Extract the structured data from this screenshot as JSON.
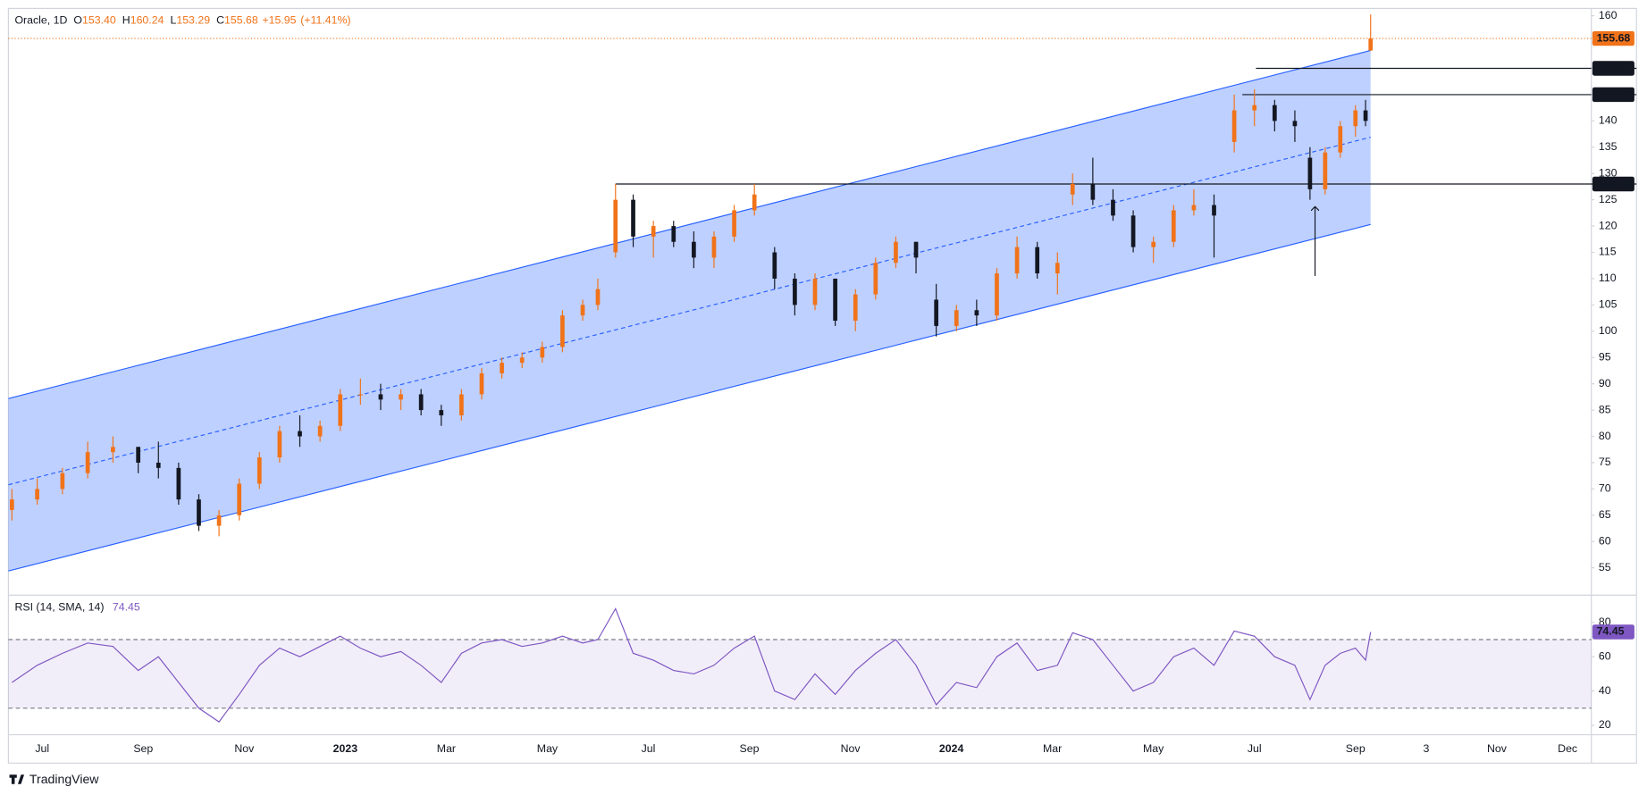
{
  "chart_data": [
    {
      "type": "candlestick",
      "title": "Oracle, 1D",
      "legend_fields": [
        {
          "key": "O",
          "value": 153.4,
          "label": "153.40"
        },
        {
          "key": "H",
          "value": 160.24
        },
        {
          "key": "L",
          "value": 153.29
        },
        {
          "key": "C",
          "value": 155.68
        },
        {
          "value": 15.95,
          "label": "+15.95"
        },
        {
          "value": 11.41,
          "label": "(+11.41%)"
        }
      ],
      "up_color": "#f0731a",
      "down_color": "#131722",
      "x": [
        0.4,
        0.9,
        1.4,
        1.9,
        2.4,
        2.9,
        3.3,
        3.7,
        4.1,
        4.5,
        4.9,
        5.3,
        5.7,
        6.1,
        6.5,
        6.9,
        7.3,
        7.7,
        8.1,
        8.5,
        8.9,
        9.3,
        9.7,
        10.1,
        10.5,
        10.9,
        11.3,
        11.7,
        12.0,
        12.35,
        12.7,
        13.1,
        13.5,
        13.9,
        14.3,
        14.7,
        15.1,
        15.5,
        15.9,
        16.3,
        16.7,
        17.1,
        17.5,
        17.9,
        18.3,
        18.7,
        19.1,
        19.5,
        19.9,
        20.3,
        20.7,
        21.1,
        21.4,
        21.8,
        22.2,
        22.6,
        23.0,
        23.4,
        23.8,
        24.2,
        24.6,
        25.0,
        25.4,
        25.8,
        26.1,
        26.4,
        26.7,
        27.0,
        27.2,
        27.3
      ],
      "open": [
        66,
        68,
        70,
        73,
        77,
        78,
        75,
        74,
        68,
        63,
        65,
        71,
        76,
        81,
        80,
        82,
        88,
        88,
        87,
        88,
        85,
        84,
        88,
        92,
        94,
        95,
        97,
        103,
        105,
        115,
        125,
        118,
        120,
        117,
        114,
        118,
        123,
        115,
        110,
        105,
        110,
        102,
        107,
        113,
        117,
        106,
        101,
        104,
        103,
        111,
        116,
        111,
        126,
        128,
        125,
        122,
        116,
        117,
        123,
        124,
        136,
        142,
        143,
        140,
        133,
        127,
        134,
        139,
        142,
        153.4
      ],
      "high": [
        70,
        72,
        74,
        79,
        80,
        78,
        79,
        75,
        69,
        66,
        72,
        77,
        82,
        84,
        83,
        89,
        91,
        90,
        89,
        89,
        86,
        89,
        93,
        95,
        96,
        98,
        104,
        106,
        110,
        128,
        126,
        121,
        121,
        119,
        119,
        124,
        128,
        116,
        111,
        111,
        110,
        108,
        114,
        118,
        117,
        109,
        105,
        106,
        112,
        118,
        117,
        115,
        130,
        133,
        127,
        123,
        118,
        124,
        127,
        126,
        145,
        146,
        144,
        142,
        135,
        135,
        140,
        143,
        144,
        160.24
      ],
      "low": [
        64,
        67,
        69,
        72,
        75,
        73,
        72,
        67,
        62,
        61,
        64,
        70,
        75,
        78,
        79,
        81,
        86,
        85,
        85,
        84,
        82,
        83,
        87,
        91,
        93,
        94,
        96,
        102,
        104,
        114,
        116,
        114,
        116,
        112,
        112,
        117,
        122,
        108,
        103,
        104,
        101,
        100,
        106,
        112,
        111,
        99,
        100,
        101,
        102,
        110,
        110,
        107,
        124,
        124,
        121,
        115,
        113,
        116,
        122,
        114,
        134,
        139,
        138,
        136,
        125,
        126,
        133,
        137,
        139,
        153.29
      ],
      "close": [
        68,
        70,
        73,
        77,
        78,
        75,
        74,
        68,
        63,
        65,
        71,
        76,
        81,
        80,
        82,
        88,
        88,
        87,
        88,
        85,
        84,
        88,
        92,
        94,
        95,
        97,
        103,
        105,
        108,
        125,
        118,
        120,
        117,
        114,
        118,
        123,
        126,
        110,
        105,
        110,
        102,
        107,
        113,
        117,
        114,
        101,
        104,
        103,
        111,
        116,
        111,
        113,
        128,
        125,
        122,
        116,
        117,
        123,
        124,
        122,
        142,
        143,
        140,
        139,
        127,
        134,
        139,
        142,
        140,
        155.68
      ],
      "channel": {
        "x": [
          0.33,
          27.3
        ],
        "upper": [
          87.2,
          153.4
        ],
        "middle": [
          70.8,
          136.9
        ],
        "lower": [
          54.4,
          120.3
        ],
        "color": "#2962ff"
      },
      "levels": [
        {
          "value": 150,
          "label": "150.00",
          "x": 25.03
        },
        {
          "value": 145,
          "label": "145.00",
          "x": 24.76
        },
        {
          "value": 128,
          "label": "128.00",
          "x": 12.35
        }
      ],
      "last_price": 155.68,
      "arrow": {
        "x": 26.2,
        "from": 110.5,
        "to": 123.7
      },
      "xlim": [
        0.33,
        31.67
      ],
      "ylim": [
        50,
        161.4
      ],
      "yticks": [
        55,
        60,
        65,
        70,
        75,
        80,
        85,
        90,
        95,
        100,
        105,
        110,
        115,
        120,
        125,
        130,
        135,
        140,
        145,
        150,
        155,
        160
      ],
      "xticks": [
        {
          "value": 1,
          "label": "Jul"
        },
        {
          "value": 3,
          "label": "Sep"
        },
        {
          "value": 5,
          "label": "Nov"
        },
        {
          "value": 7,
          "label": "2023"
        },
        {
          "value": 9,
          "label": "Mar"
        },
        {
          "value": 11,
          "label": "May"
        },
        {
          "value": 13,
          "label": "Jul"
        },
        {
          "value": 15,
          "label": "Sep"
        },
        {
          "value": 17,
          "label": "Nov"
        },
        {
          "value": 19,
          "label": "2024"
        },
        {
          "value": 21,
          "label": "Mar"
        },
        {
          "value": 23,
          "label": "May"
        },
        {
          "value": 25,
          "label": "Jul"
        },
        {
          "value": 27,
          "label": "Sep"
        },
        {
          "value": 28.4,
          "label": "3"
        },
        {
          "value": 29.8,
          "label": "Nov"
        },
        {
          "value": 31.2,
          "label": "Dec"
        }
      ],
      "grid": false,
      "brand": "TradingView"
    },
    {
      "type": "line",
      "title": "RSI (14, SMA, 14)",
      "current": 74.45,
      "color": "#7e57c2",
      "x": [
        0.4,
        0.9,
        1.4,
        1.9,
        2.4,
        2.9,
        3.3,
        3.7,
        4.1,
        4.5,
        4.9,
        5.3,
        5.7,
        6.1,
        6.5,
        6.9,
        7.3,
        7.7,
        8.1,
        8.5,
        8.9,
        9.3,
        9.7,
        10.1,
        10.5,
        10.9,
        11.3,
        11.7,
        12.0,
        12.35,
        12.7,
        13.1,
        13.5,
        13.9,
        14.3,
        14.7,
        15.1,
        15.5,
        15.9,
        16.3,
        16.7,
        17.1,
        17.5,
        17.9,
        18.3,
        18.7,
        19.1,
        19.5,
        19.9,
        20.3,
        20.7,
        21.1,
        21.4,
        21.8,
        22.2,
        22.6,
        23.0,
        23.4,
        23.8,
        24.2,
        24.6,
        25.0,
        25.4,
        25.8,
        26.1,
        26.4,
        26.7,
        27.0,
        27.2,
        27.3
      ],
      "values": [
        45,
        55,
        62,
        68,
        66,
        52,
        60,
        45,
        30,
        22,
        38,
        55,
        65,
        60,
        66,
        72,
        65,
        60,
        63,
        55,
        45,
        62,
        68,
        70,
        66,
        68,
        72,
        68,
        70,
        88,
        62,
        58,
        52,
        50,
        55,
        65,
        72,
        40,
        35,
        50,
        38,
        52,
        62,
        70,
        55,
        32,
        45,
        42,
        60,
        68,
        52,
        55,
        74,
        70,
        55,
        40,
        45,
        60,
        65,
        55,
        75,
        72,
        60,
        55,
        35,
        55,
        62,
        65,
        58,
        74.45
      ],
      "bands": [
        30,
        70
      ],
      "xlim": [
        0.33,
        31.67
      ],
      "ylim": [
        14.5,
        95.3
      ],
      "yticks": [
        20,
        40,
        60,
        80
      ],
      "grid": false
    }
  ]
}
